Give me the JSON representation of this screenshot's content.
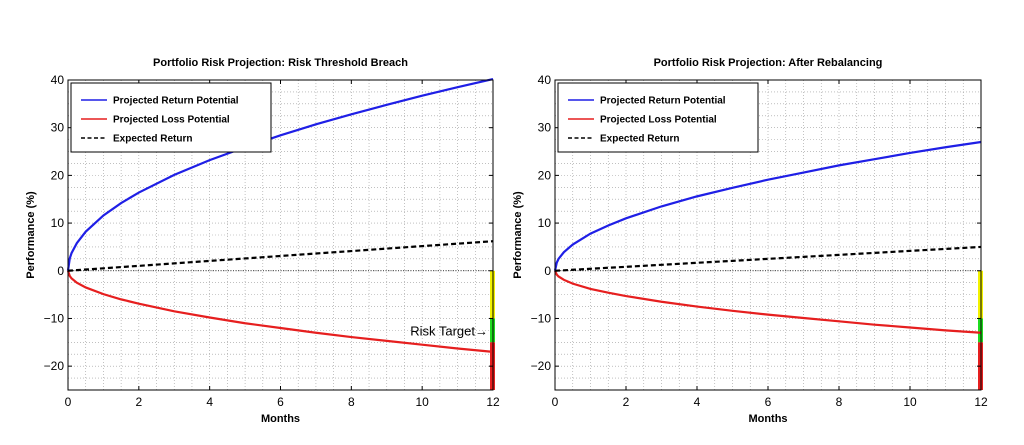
{
  "chart_data": [
    {
      "type": "line",
      "title": "Portfolio Risk Projection: Risk Threshold Breach",
      "xlabel": "Months",
      "ylabel": "Performance (%)",
      "xlim": [
        0,
        12
      ],
      "ylim": [
        -25,
        40
      ],
      "xticks": [
        0,
        2,
        4,
        6,
        8,
        10,
        12
      ],
      "yticks": [
        -20,
        -10,
        0,
        10,
        20,
        30,
        40
      ],
      "xtick_labels": [
        "0",
        "2",
        "4",
        "6",
        "8",
        "10",
        "12"
      ],
      "ytick_labels": [
        "−20",
        "−10",
        "0",
        "10",
        "20",
        "30",
        "40"
      ],
      "grid": true,
      "legend_position": "top-left",
      "x": [
        0,
        0.05,
        0.1,
        0.25,
        0.5,
        1,
        1.5,
        2,
        3,
        4,
        5,
        6,
        7,
        8,
        9,
        10,
        11,
        12
      ],
      "series": [
        {
          "name": "Projected Return Potential",
          "color": "#1f1fe6",
          "style": "solid",
          "values": [
            0,
            2.6,
            3.7,
            5.8,
            8.2,
            11.6,
            14.2,
            16.4,
            20.1,
            23.2,
            25.9,
            28.4,
            30.7,
            32.8,
            34.8,
            36.7,
            38.5,
            40.2
          ]
        },
        {
          "name": "Projected Loss Potential",
          "color": "#e61f1f",
          "style": "solid",
          "values": [
            0,
            -1.1,
            -1.6,
            -2.5,
            -3.5,
            -4.9,
            -6.0,
            -6.9,
            -8.5,
            -9.8,
            -11.0,
            -12.0,
            -13.0,
            -13.9,
            -14.7,
            -15.5,
            -16.3,
            -17.0
          ]
        },
        {
          "name": "Expected Return",
          "color": "#000000",
          "style": "dashed",
          "values": [
            0,
            0.03,
            0.05,
            0.13,
            0.26,
            0.52,
            0.78,
            1.03,
            1.55,
            2.07,
            2.58,
            3.1,
            3.62,
            4.13,
            4.65,
            5.17,
            5.68,
            6.2
          ]
        }
      ],
      "risk_bands": [
        {
          "from": 0,
          "to": -10,
          "color": "#f2f200"
        },
        {
          "from": -10,
          "to": -15,
          "color": "#1fdc1f"
        },
        {
          "from": -15,
          "to": -25,
          "color": "#e61f1f"
        }
      ],
      "annotation": {
        "text": "Risk Target→",
        "x": 12,
        "y": -12.5
      }
    },
    {
      "type": "line",
      "title": "Portfolio Risk Projection: After Rebalancing",
      "xlabel": "Months",
      "ylabel": "Performance (%)",
      "xlim": [
        0,
        12
      ],
      "ylim": [
        -25,
        40
      ],
      "xticks": [
        0,
        2,
        4,
        6,
        8,
        10,
        12
      ],
      "yticks": [
        -20,
        -10,
        0,
        10,
        20,
        30,
        40
      ],
      "xtick_labels": [
        "0",
        "2",
        "4",
        "6",
        "8",
        "10",
        "12"
      ],
      "ytick_labels": [
        "−20",
        "−10",
        "0",
        "10",
        "20",
        "30",
        "40"
      ],
      "grid": true,
      "legend_position": "top-left",
      "x": [
        0,
        0.05,
        0.1,
        0.25,
        0.5,
        1,
        1.5,
        2,
        3,
        4,
        5,
        6,
        7,
        8,
        9,
        10,
        11,
        12
      ],
      "series": [
        {
          "name": "Projected Return Potential",
          "color": "#1f1fe6",
          "style": "solid",
          "values": [
            0,
            1.7,
            2.5,
            3.9,
            5.5,
            7.8,
            9.5,
            11.0,
            13.5,
            15.6,
            17.4,
            19.1,
            20.6,
            22.1,
            23.4,
            24.7,
            25.9,
            27.0
          ]
        },
        {
          "name": "Projected Loss Potential",
          "color": "#e61f1f",
          "style": "solid",
          "values": [
            0,
            -0.8,
            -1.2,
            -1.9,
            -2.7,
            -3.8,
            -4.6,
            -5.3,
            -6.5,
            -7.5,
            -8.4,
            -9.2,
            -9.9,
            -10.6,
            -11.3,
            -11.9,
            -12.5,
            -13.0
          ]
        },
        {
          "name": "Expected Return",
          "color": "#000000",
          "style": "dashed",
          "values": [
            0,
            0.02,
            0.04,
            0.1,
            0.21,
            0.42,
            0.63,
            0.83,
            1.25,
            1.67,
            2.08,
            2.5,
            2.92,
            3.33,
            3.75,
            4.17,
            4.58,
            5.0
          ]
        }
      ],
      "risk_bands": [
        {
          "from": 0,
          "to": -10,
          "color": "#f2f200"
        },
        {
          "from": -10,
          "to": -15,
          "color": "#1fdc1f"
        },
        {
          "from": -15,
          "to": -25,
          "color": "#e61f1f"
        }
      ]
    }
  ]
}
